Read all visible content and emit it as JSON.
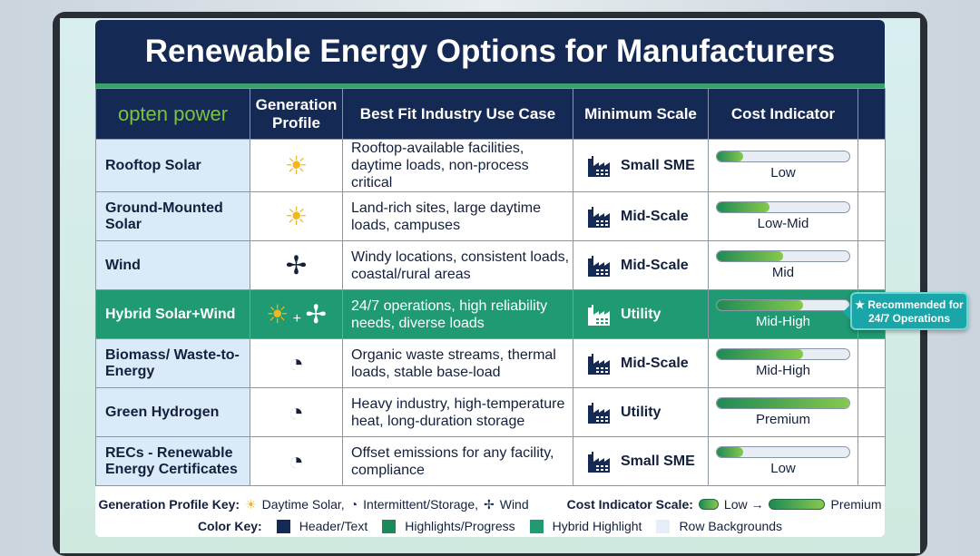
{
  "title": "Renewable Energy Options for Manufacturers",
  "logo": "opten power",
  "headers": [
    "Generation Profile",
    "Best Fit Industry Use Case",
    "Minimum Scale",
    "Cost Indicator"
  ],
  "rows": [
    {
      "name": "Rooftop Solar",
      "profile": "sun",
      "use": "Rooftop-available facilities, daytime loads, non-process critical",
      "scale": "Small SME",
      "cost": "Low",
      "level": 0.2
    },
    {
      "name": "Ground-Mounted Solar",
      "profile": "sun",
      "use": "Land-rich sites, large daytime loads, campuses",
      "scale": "Mid-Scale",
      "cost": "Low-Mid",
      "level": 0.4
    },
    {
      "name": "Wind",
      "profile": "wind",
      "use": "Windy locations, consistent loads, coastal/rural areas",
      "scale": "Mid-Scale",
      "cost": "Mid",
      "level": 0.5
    },
    {
      "name": "Hybrid Solar+Wind",
      "profile": "sun+wind",
      "use": "24/7 operations, high reliability needs, diverse loads",
      "scale": "Utility",
      "cost": "Mid-High",
      "level": 0.65
    },
    {
      "name": "Biomass/ Waste-to-Energy",
      "profile": "storage",
      "use": "Organic waste streams, thermal loads, stable base-load",
      "scale": "Mid-Scale",
      "cost": "Mid-High",
      "level": 0.65
    },
    {
      "name": "Green Hydrogen",
      "profile": "storage",
      "use": "Heavy industry, high-temperature heat, long-duration storage",
      "scale": "Utility",
      "cost": "Premium",
      "level": 1.0
    },
    {
      "name": "RECs - Renewable Energy Certificates",
      "profile": "storage",
      "use": "Offset emissions for any facility, compliance",
      "scale": "Small SME",
      "cost": "Low",
      "level": 0.2
    }
  ],
  "badge": "★ Recommended for 24/7 Operations",
  "legend": {
    "profile_label": "Generation Profile Key:",
    "solar": "Daytime Solar,",
    "storage": "Intermittent/Storage,",
    "wind": "Wind",
    "cost_label": "Cost Indicator Scale:",
    "low": "Low →",
    "premium": "Premium",
    "color_label": "Color Key:",
    "colors": [
      {
        "label": "Header/Text",
        "color": "#142a55"
      },
      {
        "label": "Highlights/Progress",
        "color": "#1a8a5a"
      },
      {
        "label": "Hybrid Highlight",
        "color": "#1f9a72"
      },
      {
        "label": "Row Backgrounds",
        "color": "#e6eff9"
      }
    ]
  }
}
